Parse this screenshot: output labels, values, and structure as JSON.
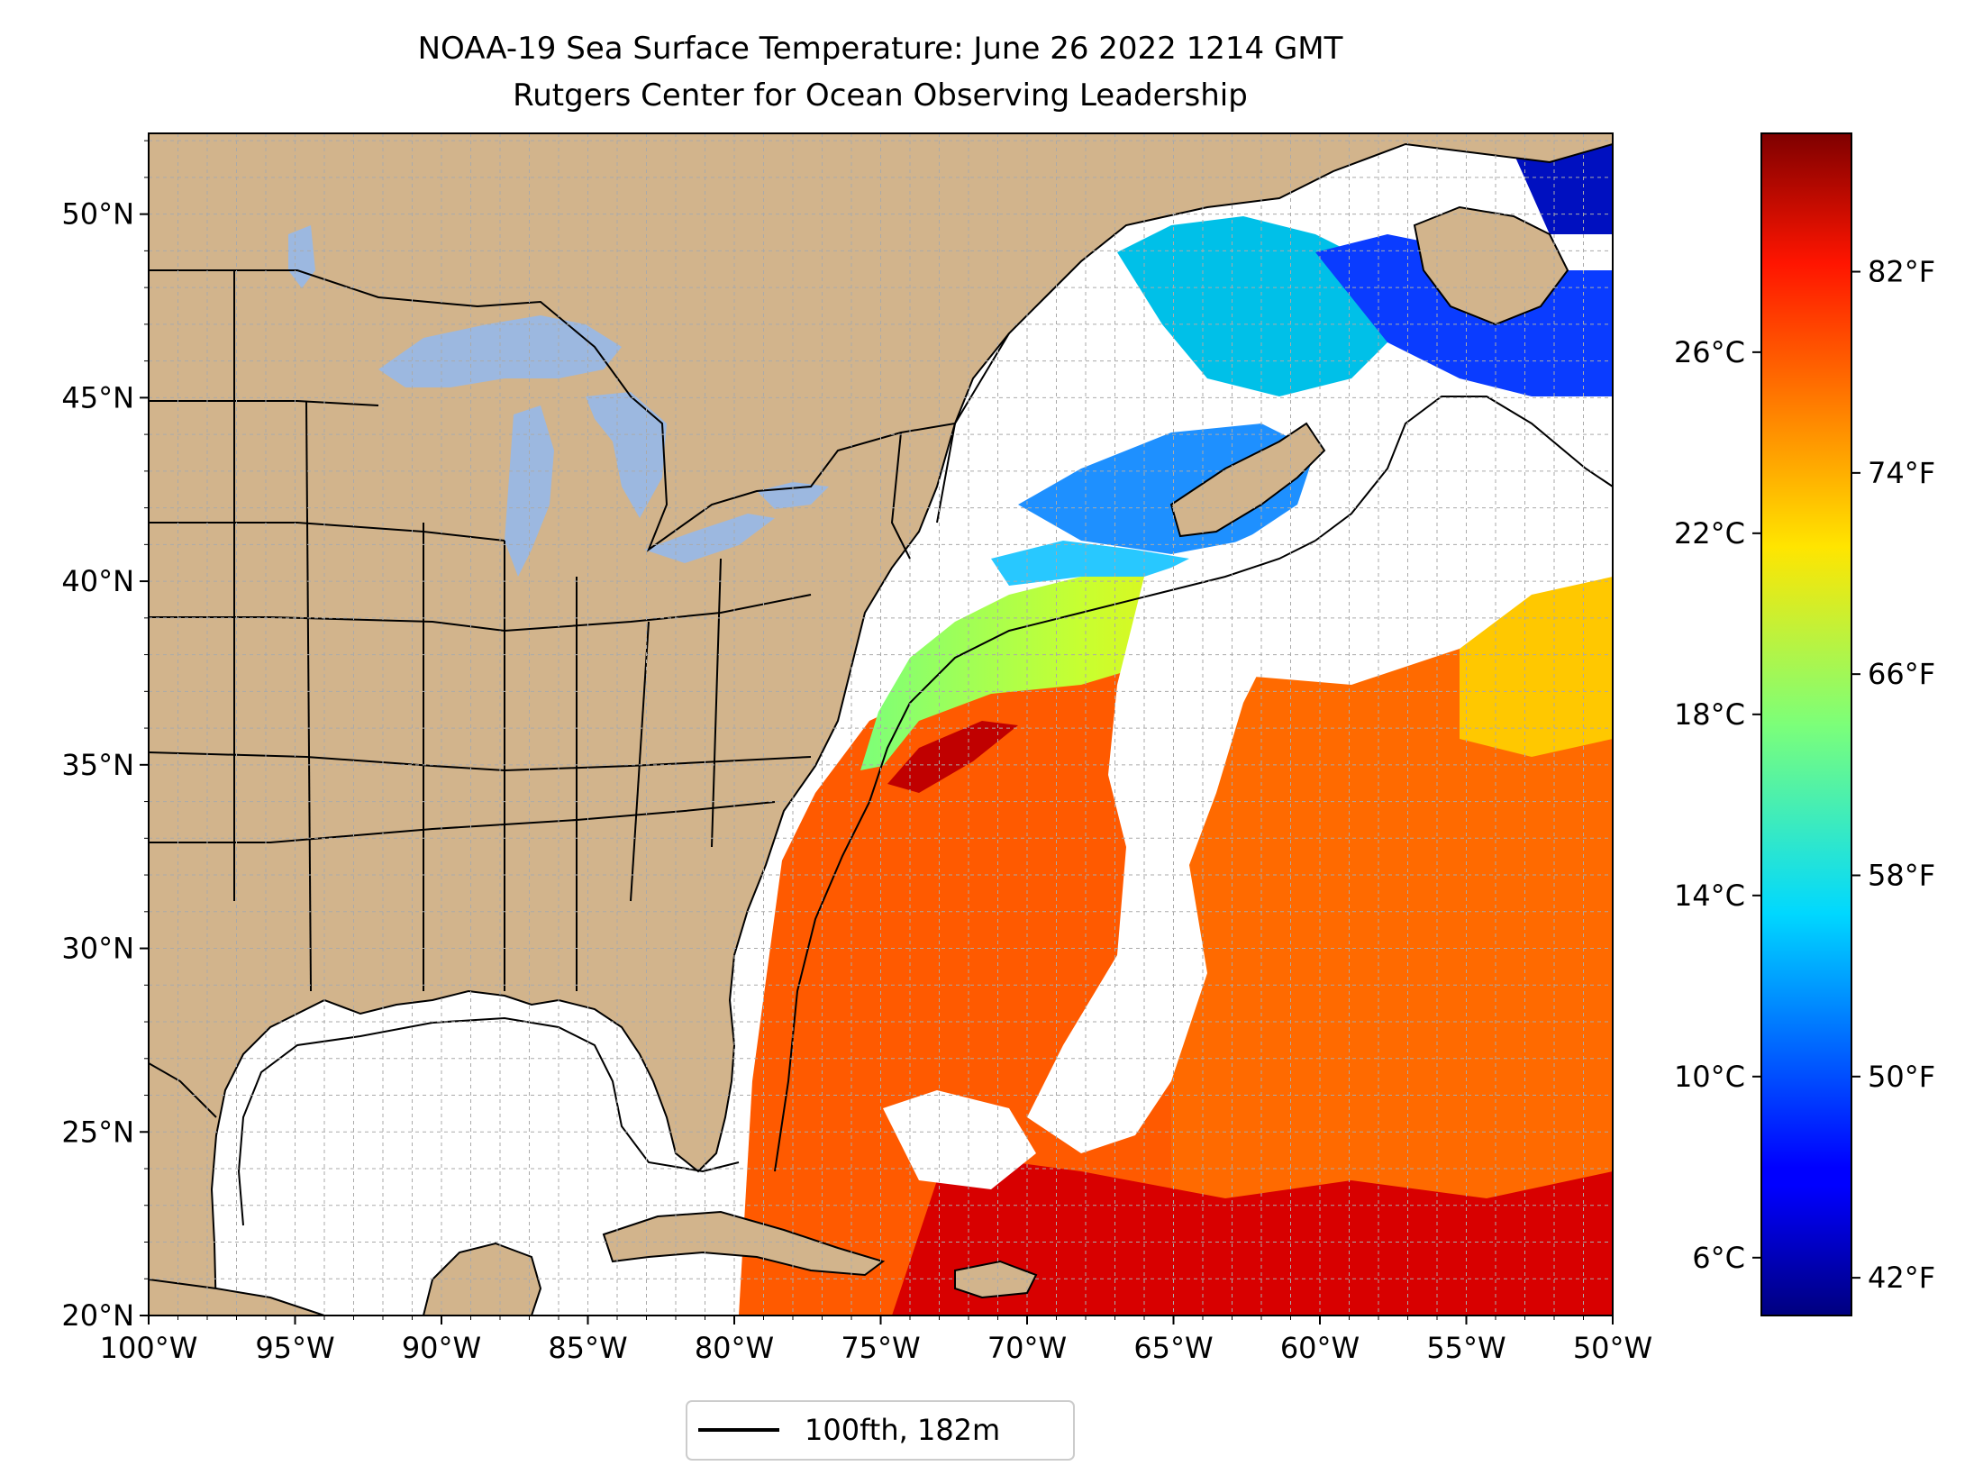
{
  "title": {
    "line1": "NOAA-19 Sea Surface Temperature: June 26 2022 1214 GMT",
    "line2": "Rutgers Center for Ocean Observing Leadership"
  },
  "map": {
    "lon_range": [
      -100,
      -50
    ],
    "lat_range": [
      20,
      52.2
    ],
    "lon_ticks": [
      {
        "value": -100,
        "label": "100°W"
      },
      {
        "value": -95,
        "label": "95°W"
      },
      {
        "value": -90,
        "label": "90°W"
      },
      {
        "value": -85,
        "label": "85°W"
      },
      {
        "value": -80,
        "label": "80°W"
      },
      {
        "value": -75,
        "label": "75°W"
      },
      {
        "value": -70,
        "label": "70°W"
      },
      {
        "value": -65,
        "label": "65°W"
      },
      {
        "value": -60,
        "label": "60°W"
      },
      {
        "value": -55,
        "label": "55°W"
      },
      {
        "value": -50,
        "label": "50°W"
      }
    ],
    "lat_ticks": [
      {
        "value": 20,
        "label": "20°N"
      },
      {
        "value": 25,
        "label": "25°N"
      },
      {
        "value": 30,
        "label": "30°N"
      },
      {
        "value": 35,
        "label": "35°N"
      },
      {
        "value": 40,
        "label": "40°N"
      },
      {
        "value": 45,
        "label": "45°N"
      },
      {
        "value": 50,
        "label": "50°N"
      }
    ],
    "grid_step_degrees": 1,
    "grid": true,
    "colors": {
      "land": "#d2b48c",
      "lakes": "#9cb8e0",
      "ocean_nodata": "#ffffff",
      "border": "#000000",
      "grid": "#aaaaaa"
    }
  },
  "colorbar": {
    "colormap": "jet",
    "range_f": [
      40.5,
      87.5
    ],
    "celsius_ticks": [
      {
        "value_c": 6,
        "label": "6°C"
      },
      {
        "value_c": 10,
        "label": "10°C"
      },
      {
        "value_c": 14,
        "label": "14°C"
      },
      {
        "value_c": 18,
        "label": "18°C"
      },
      {
        "value_c": 22,
        "label": "22°C"
      },
      {
        "value_c": 26,
        "label": "26°C"
      }
    ],
    "fahrenheit_ticks": [
      {
        "value_f": 42,
        "label": "42°F"
      },
      {
        "value_f": 50,
        "label": "50°F"
      },
      {
        "value_f": 58,
        "label": "58°F"
      },
      {
        "value_f": 66,
        "label": "66°F"
      },
      {
        "value_f": 74,
        "label": "74°F"
      },
      {
        "value_f": 82,
        "label": "82°F"
      }
    ]
  },
  "legend": {
    "placement": "bottom-center",
    "entries": [
      {
        "label": "100fth, 182m",
        "color": "#000000"
      }
    ]
  }
}
